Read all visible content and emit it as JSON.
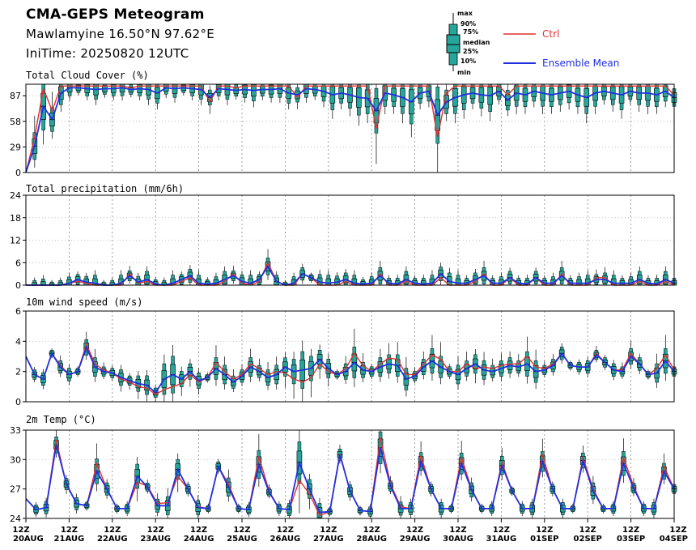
{
  "header": {
    "title": "CMA-GEPS Meteogram",
    "location": "Mawlamyine 16.50°N 97.62°E",
    "init_time": "IniTime: 20250820 12UTC"
  },
  "legend": {
    "box_labels": [
      "max",
      "90%",
      "75%",
      "median",
      "25%",
      "10%",
      "min"
    ],
    "ctrl": "Ctrl",
    "mean": "Ensemble Mean",
    "ctrl_color": "#e03030",
    "mean_color": "#2030e0",
    "box_color": "#26a69a"
  },
  "chart_data": [
    {
      "type": "line",
      "title": "Total Cloud Cover (%)",
      "ylim": [
        0,
        100
      ],
      "yticks": [
        "0",
        "29",
        "58",
        "87"
      ],
      "x_labels": [
        [
          "12Z",
          "20AUG"
        ],
        [
          "12Z",
          "21AUG"
        ],
        [
          "12Z",
          "22AUG"
        ],
        [
          "12Z",
          "23AUG"
        ],
        [
          "12Z",
          "24AUG"
        ],
        [
          "12Z",
          "25AUG"
        ],
        [
          "12Z",
          "26AUG"
        ],
        [
          "12Z",
          "27AUG"
        ],
        [
          "12Z",
          "28AUG"
        ],
        [
          "12Z",
          "29AUG"
        ],
        [
          "12Z",
          "30AUG"
        ],
        [
          "12Z",
          "31AUG"
        ],
        [
          "12Z",
          "01SEP"
        ],
        [
          "12Z",
          "02SEP"
        ],
        [
          "12Z",
          "03SEP"
        ],
        [
          "12Z",
          "04SEP"
        ]
      ],
      "series": [
        {
          "name": "Ctrl",
          "values": [
            0,
            40,
            95,
            70,
            98,
            98,
            98,
            98,
            98,
            98,
            98,
            98,
            96,
            98,
            98,
            98,
            98,
            98,
            98,
            98,
            98,
            80,
            98,
            98,
            96,
            98,
            98,
            98,
            98,
            98,
            98,
            85,
            98,
            98,
            98,
            98,
            98,
            98,
            98,
            98,
            50,
            98,
            98,
            98,
            98,
            98,
            98,
            40,
            90,
            98,
            98,
            98,
            98,
            98,
            98,
            88,
            98,
            98,
            98,
            98,
            98,
            98,
            98,
            98,
            98,
            98,
            98,
            98,
            98,
            98,
            98,
            98,
            98,
            98,
            88
          ]
        },
        {
          "name": "Ensemble Mean",
          "values": [
            0,
            30,
            75,
            60,
            90,
            96,
            96,
            95,
            94,
            95,
            95,
            96,
            94,
            95,
            94,
            90,
            96,
            95,
            96,
            95,
            94,
            85,
            95,
            94,
            93,
            94,
            93,
            94,
            94,
            95,
            90,
            88,
            95,
            94,
            92,
            88,
            90,
            88,
            85,
            84,
            70,
            90,
            88,
            85,
            80,
            90,
            92,
            65,
            80,
            85,
            88,
            90,
            88,
            87,
            92,
            82,
            90,
            88,
            92,
            90,
            88,
            90,
            92,
            88,
            85,
            90,
            92,
            90,
            88,
            92,
            90,
            90,
            88,
            92,
            85
          ]
        }
      ]
    },
    {
      "type": "line",
      "title": "Total precipitation (mm/6h)",
      "ylim": [
        0,
        24
      ],
      "yticks": [
        "0",
        "6",
        "12",
        "18",
        "24"
      ],
      "series": [
        {
          "name": "Ctrl",
          "values": [
            0,
            0,
            0,
            0,
            0,
            0.5,
            1,
            0.5,
            0,
            0,
            0,
            0,
            3,
            0.5,
            1,
            0,
            0,
            0,
            1,
            2,
            0,
            0,
            0,
            1,
            3,
            0.5,
            0,
            1,
            6,
            1,
            0,
            0,
            3,
            2,
            0,
            0,
            0,
            1,
            0,
            0,
            0,
            3,
            0,
            0,
            1,
            0,
            0,
            0,
            2,
            0,
            0,
            0,
            1,
            3,
            0,
            0,
            2,
            0,
            0,
            2,
            0,
            0,
            3,
            0,
            0,
            0,
            2,
            2,
            0,
            0,
            0,
            1,
            0,
            0,
            1,
            0
          ]
        },
        {
          "name": "Ensemble Mean",
          "values": [
            0,
            0,
            0,
            0,
            0,
            0.5,
            1.5,
            0.8,
            0.5,
            0,
            0,
            0.5,
            2.5,
            0.8,
            1.5,
            0.3,
            0,
            0.5,
            1.5,
            2.5,
            0.5,
            0.3,
            0.5,
            1.5,
            2.5,
            1,
            0.5,
            1.5,
            5,
            1,
            0,
            0.5,
            3,
            2,
            0.8,
            0.5,
            0.8,
            1.5,
            0.5,
            0.3,
            0.5,
            2.5,
            0.5,
            0.3,
            1.5,
            0.5,
            0.3,
            0.5,
            3,
            1,
            0.5,
            0.5,
            1.5,
            2.5,
            0.5,
            0.5,
            2,
            0.5,
            0.3,
            2,
            0.5,
            0.5,
            2.5,
            0.5,
            0.5,
            0.5,
            1.5,
            1.5,
            0.5,
            0.5,
            0.5,
            1.5,
            0.5,
            0.3,
            1.5,
            0.5
          ]
        }
      ]
    },
    {
      "type": "line",
      "title": "10m wind speed (m/s)",
      "ylim": [
        0,
        6
      ],
      "yticks": [
        "0",
        "2",
        "4",
        "6"
      ],
      "series": [
        {
          "name": "Ctrl",
          "values": [
            3,
            1.8,
            1.5,
            3.2,
            2.4,
            1.8,
            2,
            3.8,
            2.5,
            2.1,
            1.9,
            1.5,
            1.3,
            1,
            0.9,
            0.5,
            0.8,
            1,
            1.2,
            1.8,
            1.3,
            1.6,
            2.6,
            2,
            1.5,
            1.8,
            2.5,
            2.2,
            1.8,
            2,
            1.9,
            1.5,
            1.3,
            1.6,
            2.5,
            2,
            1.8,
            2.2,
            3.2,
            2.4,
            2,
            2.5,
            2.9,
            2.8,
            1.8,
            1.8,
            2.5,
            3.1,
            2.8,
            2,
            2,
            2.5,
            2.2,
            2.3,
            2.2,
            2.4,
            2.5,
            2.5,
            3,
            2.3,
            2.2,
            2.5,
            3.2,
            2.4,
            2.3,
            2.3,
            3.2,
            2.6,
            2.1,
            2.1,
            3.2,
            2.5,
            1.8,
            2.2,
            3.1,
            2.1
          ]
        },
        {
          "name": "Ensemble Mean",
          "values": [
            3,
            1.8,
            1.5,
            3.2,
            2.3,
            1.8,
            2,
            3.6,
            2.3,
            2,
            1.9,
            1.6,
            1.4,
            1.2,
            1.1,
            0.6,
            1.5,
            1.8,
            1.5,
            2,
            1.4,
            1.6,
            2.2,
            1.8,
            1.3,
            1.7,
            2.3,
            2,
            1.6,
            1.8,
            2.3,
            2,
            2.1,
            2.2,
            2.8,
            2.2,
            1.8,
            2,
            2.6,
            2.1,
            2,
            2.3,
            2.5,
            2.4,
            1.5,
            1.7,
            2.3,
            2.7,
            2.3,
            2,
            1.8,
            2.2,
            2.5,
            2.1,
            2,
            2.2,
            2.4,
            2.3,
            2.5,
            2,
            2.1,
            2.4,
            3.2,
            2.4,
            2.3,
            2.3,
            3.1,
            2.6,
            2.1,
            2,
            3,
            2.5,
            1.8,
            1.9,
            2.7,
            2
          ]
        }
      ]
    },
    {
      "type": "line",
      "title": "2m Temp (°C)",
      "ylim": [
        24,
        33
      ],
      "yticks": [
        "24",
        "27",
        "30",
        "33"
      ],
      "series": [
        {
          "name": "Ctrl",
          "values": [
            26,
            24.9,
            25.1,
            32,
            27.4,
            25.5,
            25.3,
            29.6,
            27,
            25,
            25,
            27.7,
            27.3,
            25.5,
            25.6,
            28.3,
            27,
            25.2,
            25,
            29.3,
            27.5,
            25,
            24.9,
            30.3,
            26.8,
            25,
            24.9,
            27.9,
            26.5,
            24.3,
            24.7,
            30.6,
            26.8,
            24.8,
            24.7,
            32.2,
            27.5,
            25.2,
            25,
            30.4,
            27,
            25,
            25,
            30.2,
            27,
            25,
            25,
            29.7,
            26.8,
            25,
            25,
            30.5,
            27,
            25,
            25,
            30.2,
            27,
            25,
            25,
            30.2,
            27.3,
            25,
            25,
            29.3,
            27
          ]
        },
        {
          "name": "Ensemble Mean",
          "values": [
            26,
            24.9,
            25.1,
            31.5,
            27.5,
            25.5,
            25.3,
            28.8,
            27,
            25,
            25,
            28.3,
            27.2,
            25.3,
            25.3,
            29,
            27,
            25.1,
            25,
            29.3,
            27.2,
            25,
            24.9,
            29.5,
            26.7,
            25,
            24.9,
            29.7,
            27,
            24.6,
            24.7,
            30.5,
            26.8,
            24.8,
            24.7,
            31.2,
            27.3,
            25,
            25,
            29.8,
            27,
            25,
            25,
            29.6,
            26.9,
            25,
            25,
            29.4,
            26.8,
            25,
            25,
            29.8,
            27,
            25,
            25,
            29.9,
            26.8,
            25,
            25,
            29.6,
            27.1,
            25,
            25,
            28.8,
            27
          ]
        }
      ]
    }
  ]
}
